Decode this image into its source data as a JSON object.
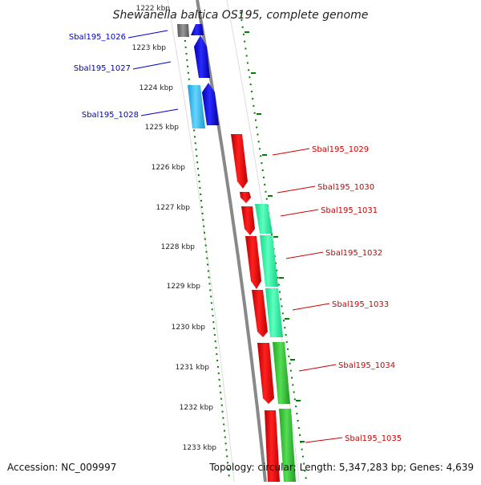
{
  "title": "Shewanella baltica OS195, complete genome",
  "footer": {
    "accession": "Accession: NC_009997",
    "summary": "Topology: circular; Length: 5,347,283 bp; Genes: 4,639"
  },
  "ruler": [
    "1222 kbp",
    "1223 kbp",
    "1224 kbp",
    "1225 kbp",
    "1226 kbp",
    "1227 kbp",
    "1228 kbp",
    "1229 kbp",
    "1230 kbp",
    "1231 kbp",
    "1232 kbp",
    "1233 kbp"
  ],
  "genes": [
    {
      "tag": "Sbal195_1026",
      "color": "#0000e6",
      "strand": "-"
    },
    {
      "tag": "Sbal195_1027",
      "color": "#0000e6",
      "strand": "-"
    },
    {
      "tag": "Sbal195_1028",
      "color": "#0000e6",
      "strand": "-"
    },
    {
      "tag": "Sbal195_1029",
      "color": "#ee0000",
      "strand": "+"
    },
    {
      "tag": "Sbal195_1030",
      "color": "#ee0000",
      "strand": "+"
    },
    {
      "tag": "Sbal195_1031",
      "color": "#ee0000",
      "strand": "+"
    },
    {
      "tag": "Sbal195_1032",
      "color": "#ee0000",
      "strand": "+"
    },
    {
      "tag": "Sbal195_1033",
      "color": "#ee0000",
      "strand": "+"
    },
    {
      "tag": "Sbal195_1034",
      "color": "#ee0000",
      "strand": "+"
    },
    {
      "tag": "Sbal195_1035",
      "color": "#ee0000",
      "strand": "+"
    }
  ],
  "track_colors": {
    "forward_cds": "#ee0000",
    "reverse_cds": "#0000e6",
    "forward_ortholog": "#33ffaa",
    "forward_ortholog_dark": "#33cc33",
    "reverse_ortholog": "#33bbee",
    "backbone": "#808080",
    "ruler_ticks": "#008000"
  }
}
